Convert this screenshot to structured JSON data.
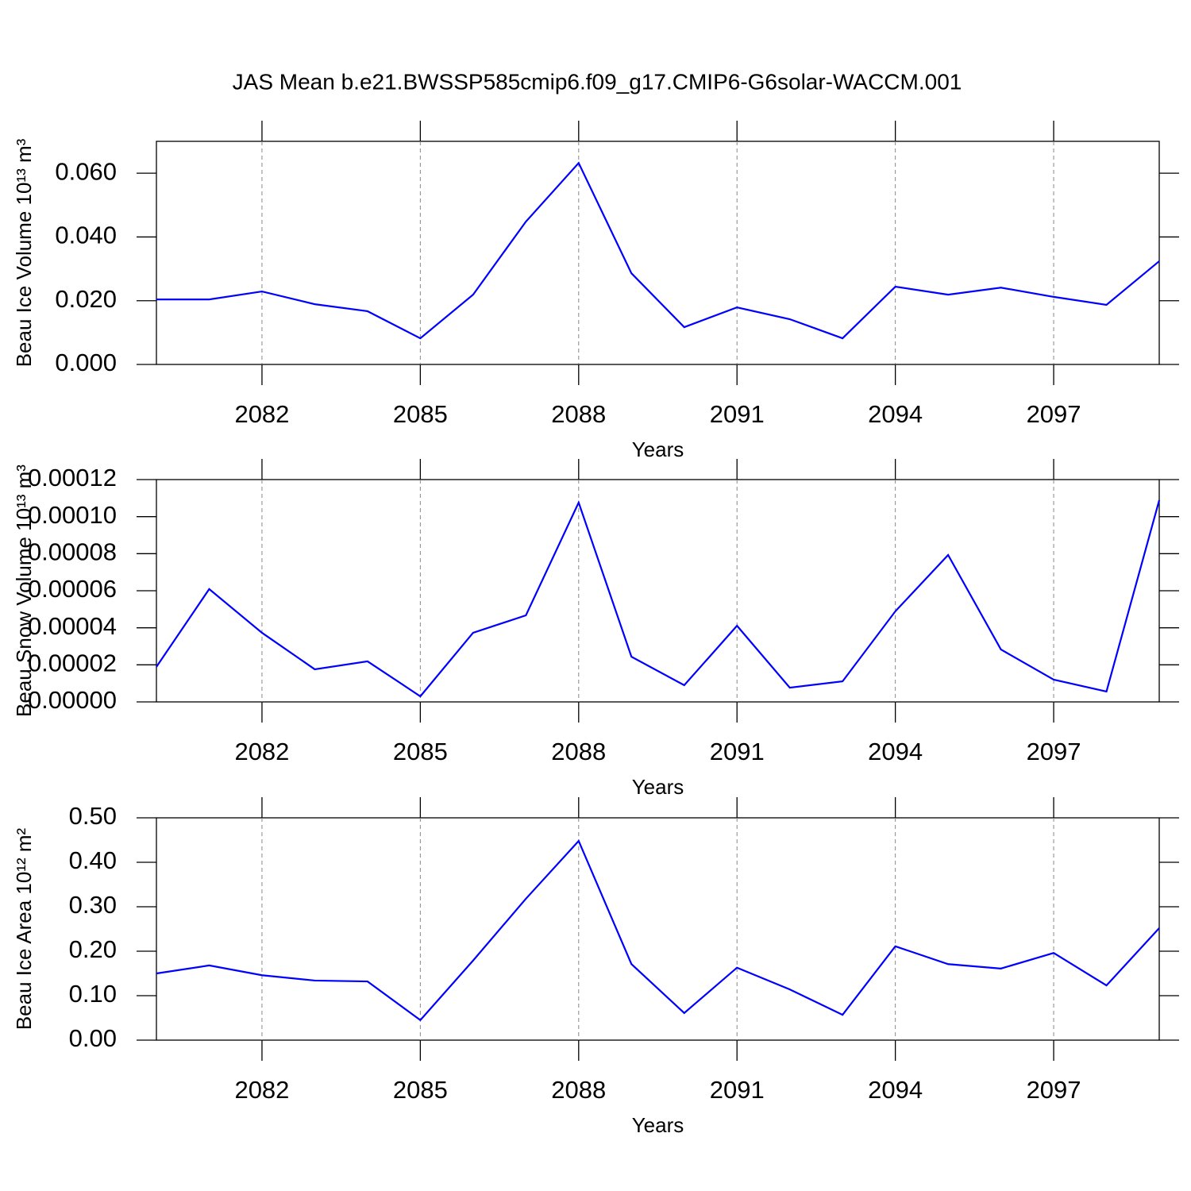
{
  "chart_data": [
    {
      "type": "line",
      "title": "JAS Mean b.e21.BWSSP585cmip6.f09_g17.CMIP6-G6solar-WACCM.001",
      "y_label": "Beau Ice Volume 10¹³ m³",
      "x_label": "Years",
      "x": [
        2080,
        2081,
        2082,
        2083,
        2084,
        2085,
        2086,
        2087,
        2088,
        2089,
        2090,
        2091,
        2092,
        2093,
        2094,
        2095,
        2096,
        2097,
        2098,
        2099
      ],
      "values": [
        0.0204,
        0.0204,
        0.0229,
        0.0189,
        0.0167,
        0.0082,
        0.0219,
        0.0448,
        0.0632,
        0.0286,
        0.0117,
        0.0179,
        0.0142,
        0.0082,
        0.0244,
        0.0219,
        0.0241,
        0.0212,
        0.0187,
        0.0324
      ],
      "color": "#0000ff",
      "xlim": [
        2080,
        2099
      ],
      "xticks": [
        2082,
        2085,
        2088,
        2091,
        2094,
        2097
      ],
      "ylim": [
        0,
        0.07
      ],
      "yticks": [
        {
          "value": 0,
          "label": "0.000"
        },
        {
          "value": 0.02,
          "label": "0.020"
        },
        {
          "value": 0.04,
          "label": "0.040"
        },
        {
          "value": 0.06,
          "label": "0.060"
        }
      ],
      "grid": "x"
    },
    {
      "type": "line",
      "y_label": "Beau Snow Volume 10¹³ m³",
      "x_label": "Years",
      "x": [
        2080,
        2081,
        2082,
        2083,
        2084,
        2085,
        2086,
        2087,
        2088,
        2089,
        2090,
        2091,
        2092,
        2093,
        2094,
        2095,
        2096,
        2097,
        2098,
        2099
      ],
      "values": [
        1.89e-05,
        6.09e-05,
        3.73e-05,
        1.76e-05,
        2.19e-05,
        3e-06,
        3.73e-05,
        4.67e-05,
        0.0001076,
        2.44e-05,
        9e-06,
        4.11e-05,
        7.7e-06,
        1.11e-05,
        4.89e-05,
        7.93e-05,
        2.83e-05,
        1.2e-05,
        5.6e-06,
        0.0001089
      ],
      "color": "#0000ff",
      "xlim": [
        2080,
        2099
      ],
      "xticks": [
        2082,
        2085,
        2088,
        2091,
        2094,
        2097
      ],
      "ylim": [
        0,
        0.00012
      ],
      "yticks": [
        {
          "value": 0,
          "label": "0.00000"
        },
        {
          "value": 2e-05,
          "label": "0.00002"
        },
        {
          "value": 4e-05,
          "label": "0.00004"
        },
        {
          "value": 6e-05,
          "label": "0.00006"
        },
        {
          "value": 8e-05,
          "label": "0.00008"
        },
        {
          "value": 0.0001,
          "label": "0.00010"
        },
        {
          "value": 0.00012,
          "label": "0.00012"
        }
      ],
      "grid": "x"
    },
    {
      "type": "line",
      "y_label": "Beau Ice Area 10¹² m²",
      "x_label": "Years",
      "x": [
        2080,
        2081,
        2082,
        2083,
        2084,
        2085,
        2086,
        2087,
        2088,
        2089,
        2090,
        2091,
        2092,
        2093,
        2094,
        2095,
        2096,
        2097,
        2098,
        2099
      ],
      "values": [
        0.15,
        0.168,
        0.146,
        0.134,
        0.132,
        0.045,
        0.179,
        0.318,
        0.448,
        0.171,
        0.061,
        0.163,
        0.114,
        0.057,
        0.211,
        0.171,
        0.161,
        0.196,
        0.123,
        0.252
      ],
      "color": "#0000ff",
      "xlim": [
        2080,
        2099
      ],
      "xticks": [
        2082,
        2085,
        2088,
        2091,
        2094,
        2097
      ],
      "ylim": [
        0,
        0.5
      ],
      "yticks": [
        {
          "value": 0,
          "label": "0.00"
        },
        {
          "value": 0.1,
          "label": "0.10"
        },
        {
          "value": 0.2,
          "label": "0.20"
        },
        {
          "value": 0.3,
          "label": "0.30"
        },
        {
          "value": 0.4,
          "label": "0.40"
        },
        {
          "value": 0.5,
          "label": "0.50"
        }
      ],
      "grid": "x"
    }
  ]
}
